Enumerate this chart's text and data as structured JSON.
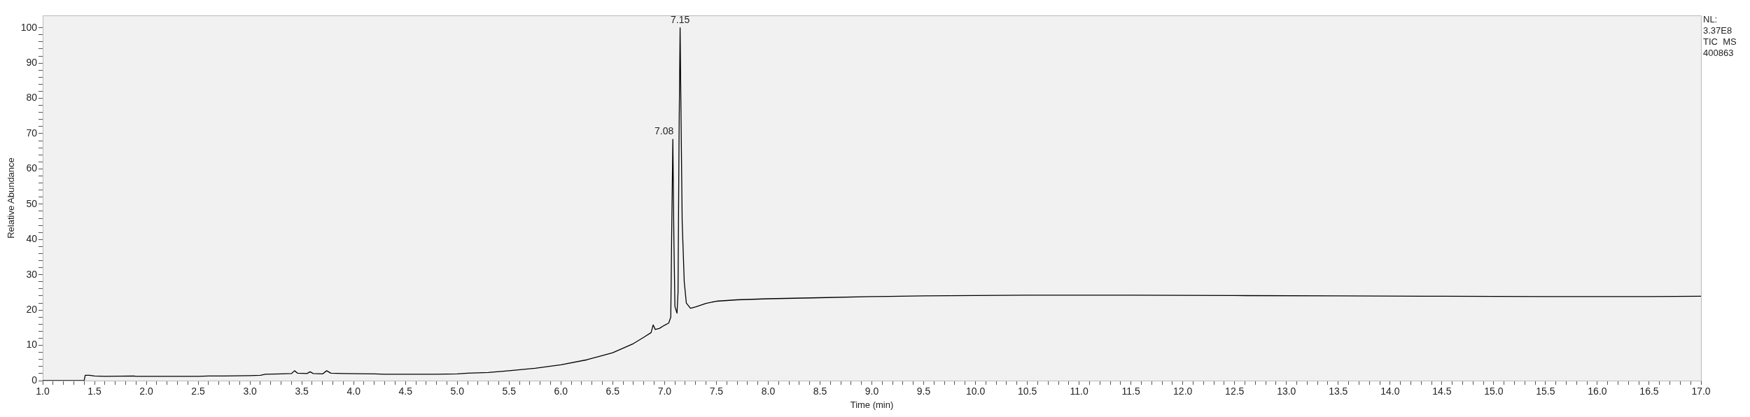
{
  "chart_data": {
    "type": "line",
    "xlabel": "Time (min)",
    "ylabel": "Relative Abundance",
    "marker": "none",
    "xlim": [
      1,
      17
    ],
    "ylim": [
      0,
      103.5
    ],
    "series": [
      {
        "color": "#000000",
        "x": [
          1.0,
          1.4,
          1.41,
          1.45,
          1.5,
          1.6,
          1.88,
          1.9,
          2.5,
          2.6,
          2.75,
          3.0,
          3.1,
          3.15,
          3.3,
          3.4,
          3.43,
          3.46,
          3.55,
          3.58,
          3.61,
          3.7,
          3.74,
          3.78,
          3.9,
          4.2,
          4.3,
          4.8,
          5.0,
          5.1,
          5.3,
          5.5,
          5.75,
          6.0,
          6.25,
          6.5,
          6.7,
          6.8,
          6.87,
          6.89,
          6.91,
          6.95,
          7.0,
          7.04,
          7.06,
          7.07,
          7.08,
          7.09,
          7.1,
          7.12,
          7.13,
          7.14,
          7.15,
          7.16,
          7.17,
          7.19,
          7.21,
          7.25,
          7.3,
          7.4,
          7.5,
          7.7,
          8.0,
          8.5,
          9.0,
          9.5,
          10.0,
          10.5,
          11.5,
          12.5,
          13.5,
          14.5,
          15.5,
          16.5,
          17.0
        ],
        "values": [
          0,
          0,
          1.5,
          1.5,
          1.3,
          1.2,
          1.3,
          1.2,
          1.2,
          1.3,
          1.3,
          1.4,
          1.5,
          1.8,
          1.9,
          2.0,
          2.8,
          2.1,
          2.0,
          2.5,
          2.0,
          1.9,
          2.8,
          2.1,
          2.0,
          1.9,
          1.8,
          1.8,
          1.9,
          2.1,
          2.3,
          2.8,
          3.5,
          4.5,
          5.9,
          7.9,
          10.5,
          12.3,
          13.6,
          15.8,
          14.5,
          14.8,
          15.7,
          16.3,
          18,
          45,
          68.4,
          40,
          21,
          19.1,
          25,
          70,
          100,
          72,
          45,
          28,
          22,
          20.5,
          20.9,
          21.9,
          22.5,
          22.9,
          23.2,
          23.5,
          23.8,
          24.0,
          24.1,
          24.2,
          24.2,
          24.1,
          24.0,
          23.9,
          23.8,
          23.8,
          23.9
        ]
      }
    ],
    "annotations": [
      {
        "text": "7.08",
        "x": 7.08,
        "y": 68.4
      },
      {
        "text": "7.15",
        "x": 7.15,
        "y": 100
      },
      "NL:",
      "3.37E8",
      "TIC  MS",
      "400863"
    ],
    "yticks": [
      0,
      {
        "value": 2,
        "label": null
      },
      {
        "value": 4,
        "label": null
      },
      {
        "value": 6,
        "label": null
      },
      {
        "value": 8,
        "label": null
      },
      10,
      {
        "value": 12,
        "label": null
      },
      {
        "value": 14,
        "label": null
      },
      {
        "value": 16,
        "label": null
      },
      {
        "value": 18,
        "label": null
      },
      20,
      {
        "value": 22,
        "label": null
      },
      {
        "value": 24,
        "label": null
      },
      {
        "value": 26,
        "label": null
      },
      {
        "value": 28,
        "label": null
      },
      30,
      {
        "value": 32,
        "label": null
      },
      {
        "value": 34,
        "label": null
      },
      {
        "value": 36,
        "label": null
      },
      {
        "value": 38,
        "label": null
      },
      40,
      {
        "value": 42,
        "label": null
      },
      {
        "value": 44,
        "label": null
      },
      {
        "value": 46,
        "label": null
      },
      {
        "value": 48,
        "label": null
      },
      50,
      {
        "value": 52,
        "label": null
      },
      {
        "value": 54,
        "label": null
      },
      {
        "value": 56,
        "label": null
      },
      {
        "value": 58,
        "label": null
      },
      60,
      {
        "value": 62,
        "label": null
      },
      {
        "value": 64,
        "label": null
      },
      {
        "value": 66,
        "label": null
      },
      {
        "value": 68,
        "label": null
      },
      70,
      {
        "value": 72,
        "label": null
      },
      {
        "value": 74,
        "label": null
      },
      {
        "value": 76,
        "label": null
      },
      {
        "value": 78,
        "label": null
      },
      80,
      {
        "value": 82,
        "label": null
      },
      {
        "value": 84,
        "label": null
      },
      {
        "value": 86,
        "label": null
      },
      {
        "value": 88,
        "label": null
      },
      90,
      {
        "value": 92,
        "label": null
      },
      {
        "value": 94,
        "label": null
      },
      {
        "value": 96,
        "label": null
      },
      {
        "value": 98,
        "label": null
      },
      100
    ],
    "xticks": [
      {
        "value": 1,
        "label": "1.0"
      },
      {
        "value": 1.1,
        "label": null
      },
      {
        "value": 1.2,
        "label": null
      },
      {
        "value": 1.3,
        "label": null
      },
      {
        "value": 1.4,
        "label": null
      },
      1.5,
      {
        "value": 1.6,
        "label": null
      },
      {
        "value": 1.7,
        "label": null
      },
      {
        "value": 1.8,
        "label": null
      },
      {
        "value": 1.9,
        "label": null
      },
      {
        "value": 2,
        "label": "2.0"
      },
      {
        "value": 2.1,
        "label": null
      },
      {
        "value": 2.2,
        "label": null
      },
      {
        "value": 2.3,
        "label": null
      },
      {
        "value": 2.4,
        "label": null
      },
      2.5,
      {
        "value": 2.6,
        "label": null
      },
      {
        "value": 2.7,
        "label": null
      },
      {
        "value": 2.8,
        "label": null
      },
      {
        "value": 2.9,
        "label": null
      },
      {
        "value": 3,
        "label": "3.0"
      },
      {
        "value": 3.1,
        "label": null
      },
      {
        "value": 3.2,
        "label": null
      },
      {
        "value": 3.3,
        "label": null
      },
      {
        "value": 3.4,
        "label": null
      },
      3.5,
      {
        "value": 3.6,
        "label": null
      },
      {
        "value": 3.7,
        "label": null
      },
      {
        "value": 3.8,
        "label": null
      },
      {
        "value": 3.9,
        "label": null
      },
      {
        "value": 4,
        "label": "4.0"
      },
      {
        "value": 4.1,
        "label": null
      },
      {
        "value": 4.2,
        "label": null
      },
      {
        "value": 4.3,
        "label": null
      },
      {
        "value": 4.4,
        "label": null
      },
      4.5,
      {
        "value": 4.6,
        "label": null
      },
      {
        "value": 4.7,
        "label": null
      },
      {
        "value": 4.8,
        "label": null
      },
      {
        "value": 4.9,
        "label": null
      },
      {
        "value": 5,
        "label": "5.0"
      },
      {
        "value": 5.1,
        "label": null
      },
      {
        "value": 5.2,
        "label": null
      },
      {
        "value": 5.3,
        "label": null
      },
      {
        "value": 5.4,
        "label": null
      },
      5.5,
      {
        "value": 5.6,
        "label": null
      },
      {
        "value": 5.7,
        "label": null
      },
      {
        "value": 5.8,
        "label": null
      },
      {
        "value": 5.9,
        "label": null
      },
      {
        "value": 6,
        "label": "6.0"
      },
      {
        "value": 6.1,
        "label": null
      },
      {
        "value": 6.2,
        "label": null
      },
      {
        "value": 6.3,
        "label": null
      },
      {
        "value": 6.4,
        "label": null
      },
      6.5,
      {
        "value": 6.6,
        "label": null
      },
      {
        "value": 6.7,
        "label": null
      },
      {
        "value": 6.8,
        "label": null
      },
      {
        "value": 6.9,
        "label": null
      },
      {
        "value": 7,
        "label": "7.0"
      },
      {
        "value": 7.1,
        "label": null
      },
      {
        "value": 7.2,
        "label": null
      },
      {
        "value": 7.3,
        "label": null
      },
      {
        "value": 7.4,
        "label": null
      },
      7.5,
      {
        "value": 7.6,
        "label": null
      },
      {
        "value": 7.7,
        "label": null
      },
      {
        "value": 7.8,
        "label": null
      },
      {
        "value": 7.9,
        "label": null
      },
      {
        "value": 8,
        "label": "8.0"
      },
      {
        "value": 8.1,
        "label": null
      },
      {
        "value": 8.2,
        "label": null
      },
      {
        "value": 8.3,
        "label": null
      },
      {
        "value": 8.4,
        "label": null
      },
      8.5,
      {
        "value": 8.6,
        "label": null
      },
      {
        "value": 8.7,
        "label": null
      },
      {
        "value": 8.8,
        "label": null
      },
      {
        "value": 8.9,
        "label": null
      },
      {
        "value": 9,
        "label": "9.0"
      },
      {
        "value": 9.1,
        "label": null
      },
      {
        "value": 9.2,
        "label": null
      },
      {
        "value": 9.3,
        "label": null
      },
      {
        "value": 9.4,
        "label": null
      },
      9.5,
      {
        "value": 9.6,
        "label": null
      },
      {
        "value": 9.7,
        "label": null
      },
      {
        "value": 9.8,
        "label": null
      },
      {
        "value": 9.9,
        "label": null
      },
      {
        "value": 10,
        "label": "10.0"
      },
      {
        "value": 10.1,
        "label": null
      },
      {
        "value": 10.2,
        "label": null
      },
      {
        "value": 10.3,
        "label": null
      },
      {
        "value": 10.4,
        "label": null
      },
      10.5,
      {
        "value": 10.6,
        "label": null
      },
      {
        "value": 10.7,
        "label": null
      },
      {
        "value": 10.8,
        "label": null
      },
      {
        "value": 10.9,
        "label": null
      },
      {
        "value": 11,
        "label": "11.0"
      },
      {
        "value": 11.1,
        "label": null
      },
      {
        "value": 11.2,
        "label": null
      },
      {
        "value": 11.3,
        "label": null
      },
      {
        "value": 11.4,
        "label": null
      },
      11.5,
      {
        "value": 11.6,
        "label": null
      },
      {
        "value": 11.7,
        "label": null
      },
      {
        "value": 11.8,
        "label": null
      },
      {
        "value": 11.9,
        "label": null
      },
      {
        "value": 12,
        "label": "12.0"
      },
      {
        "value": 12.1,
        "label": null
      },
      {
        "value": 12.2,
        "label": null
      },
      {
        "value": 12.3,
        "label": null
      },
      {
        "value": 12.4,
        "label": null
      },
      12.5,
      {
        "value": 12.6,
        "label": null
      },
      {
        "value": 12.7,
        "label": null
      },
      {
        "value": 12.8,
        "label": null
      },
      {
        "value": 12.9,
        "label": null
      },
      {
        "value": 13,
        "label": "13.0"
      },
      {
        "value": 13.1,
        "label": null
      },
      {
        "value": 13.2,
        "label": null
      },
      {
        "value": 13.3,
        "label": null
      },
      {
        "value": 13.4,
        "label": null
      },
      13.5,
      {
        "value": 13.6,
        "label": null
      },
      {
        "value": 13.7,
        "label": null
      },
      {
        "value": 13.8,
        "label": null
      },
      {
        "value": 13.9,
        "label": null
      },
      {
        "value": 14,
        "label": "14.0"
      },
      {
        "value": 14.1,
        "label": null
      },
      {
        "value": 14.2,
        "label": null
      },
      {
        "value": 14.3,
        "label": null
      },
      {
        "value": 14.4,
        "label": null
      },
      14.5,
      {
        "value": 14.6,
        "label": null
      },
      {
        "value": 14.7,
        "label": null
      },
      {
        "value": 14.8,
        "label": null
      },
      {
        "value": 14.9,
        "label": null
      },
      {
        "value": 15,
        "label": "15.0"
      },
      {
        "value": 15.1,
        "label": null
      },
      {
        "value": 15.2,
        "label": null
      },
      {
        "value": 15.3,
        "label": null
      },
      {
        "value": 15.4,
        "label": null
      },
      15.5,
      {
        "value": 15.6,
        "label": null
      },
      {
        "value": 15.7,
        "label": null
      },
      {
        "value": 15.8,
        "label": null
      },
      {
        "value": 15.9,
        "label": null
      },
      {
        "value": 16,
        "label": "16.0"
      },
      {
        "value": 16.1,
        "label": null
      },
      {
        "value": 16.2,
        "label": null
      },
      {
        "value": 16.3,
        "label": null
      },
      {
        "value": 16.4,
        "label": null
      },
      16.5,
      {
        "value": 16.6,
        "label": null
      },
      {
        "value": 16.7,
        "label": null
      },
      {
        "value": 16.8,
        "label": null
      },
      {
        "value": 16.9,
        "label": null
      },
      {
        "value": 17,
        "label": "17.0"
      }
    ]
  }
}
